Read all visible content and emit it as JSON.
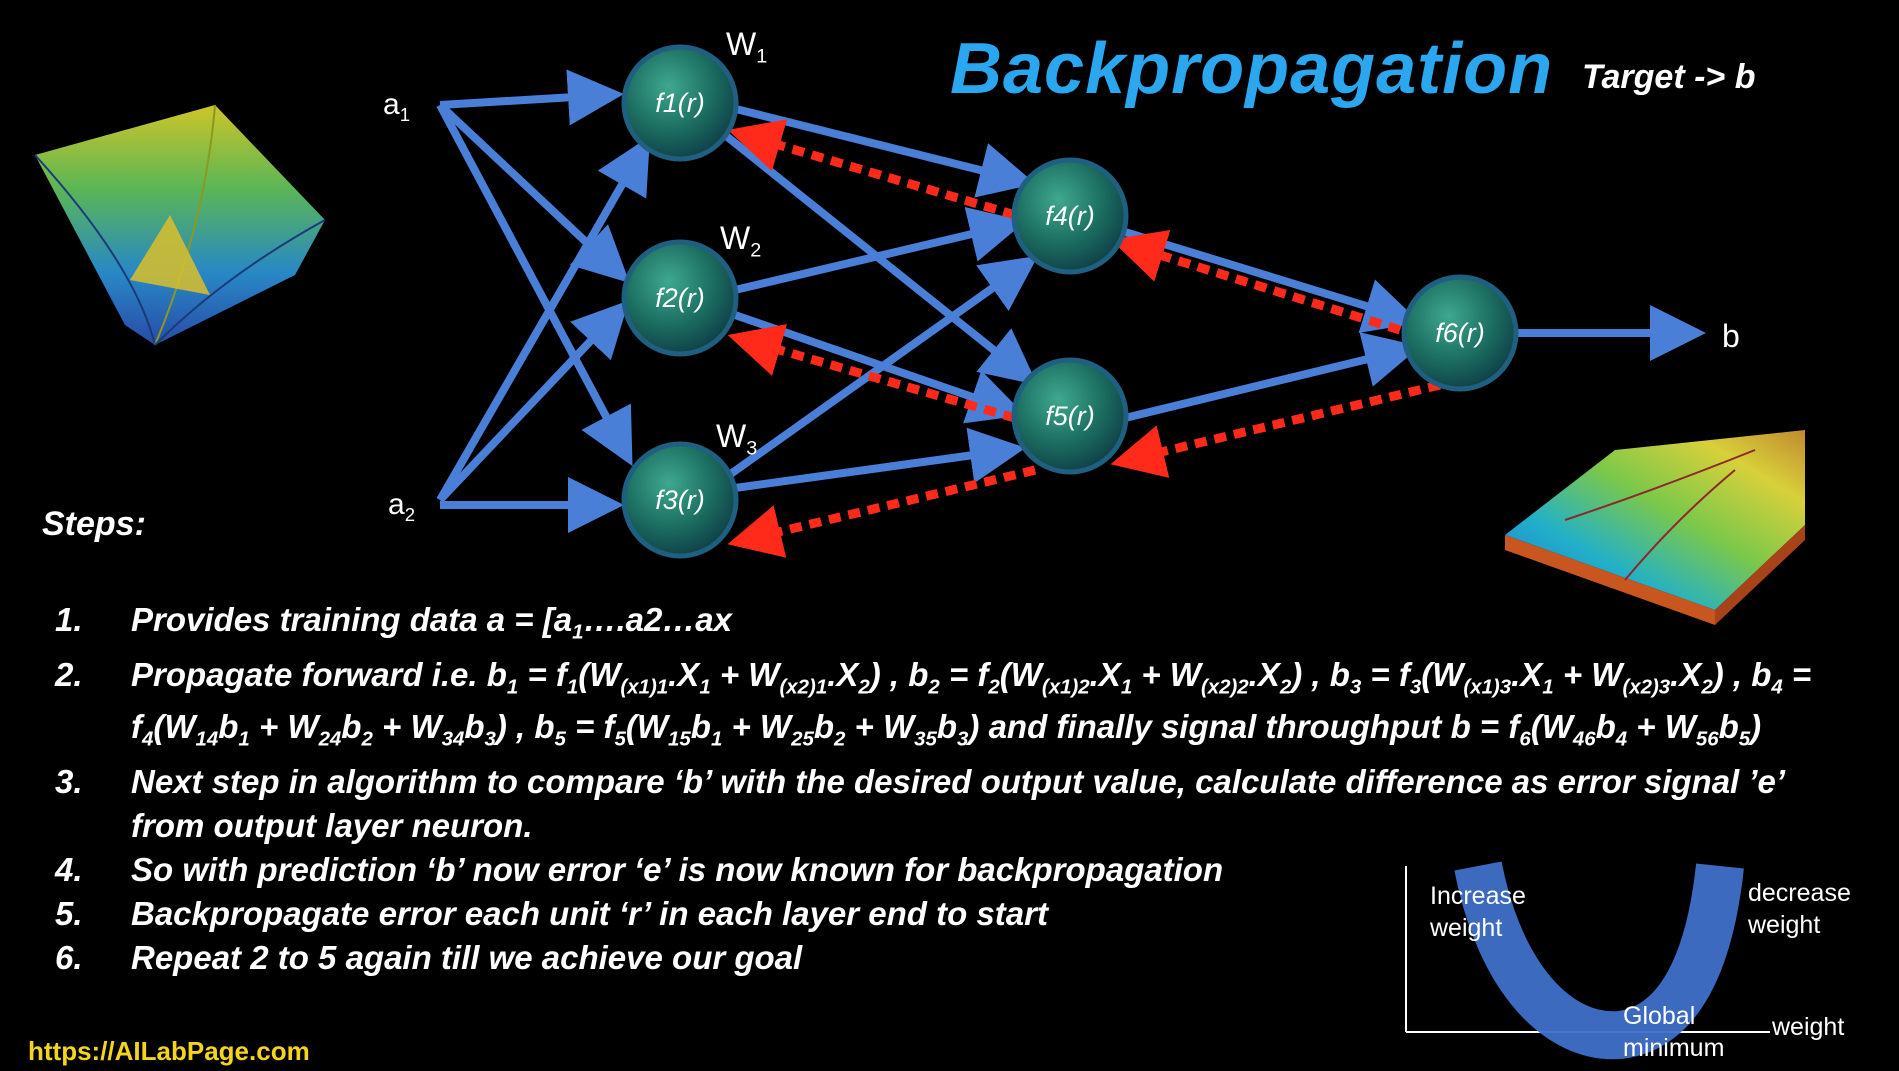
{
  "title": "Backpropagation",
  "target": "Target -> b",
  "steps_title": "Steps:",
  "inputs": [
    {
      "main": "a",
      "sub": "1"
    },
    {
      "main": "a",
      "sub": "2"
    }
  ],
  "weights": [
    {
      "main": "W",
      "sub": "1"
    },
    {
      "main": "W",
      "sub": "2"
    },
    {
      "main": "W",
      "sub": "3"
    }
  ],
  "nodes": [
    "f1(r)",
    "f2(r)",
    "f3(r)",
    "f4(r)",
    "f5(r)",
    "f6(r)"
  ],
  "output": "b",
  "steps": [
    {
      "num": "1.",
      "segments": [
        [
          "Provides training data  a = [a",
          ""
        ],
        [
          "1",
          "sub"
        ],
        [
          "….a2…ax",
          ""
        ]
      ]
    },
    {
      "num": "2.",
      "segments": [
        [
          "Propagate forward i.e. b",
          ""
        ],
        [
          "1",
          "sub"
        ],
        [
          " = f",
          ""
        ],
        [
          "1",
          "sub"
        ],
        [
          "(W",
          ""
        ],
        [
          "(x1)1",
          "sub"
        ],
        [
          ".X",
          ""
        ],
        [
          "1",
          "sub"
        ],
        [
          " + W",
          ""
        ],
        [
          "(x2)1",
          "sub"
        ],
        [
          ".X",
          ""
        ],
        [
          "2",
          "sub"
        ],
        [
          ") ,    b",
          ""
        ],
        [
          "2",
          "sub"
        ],
        [
          " = f",
          ""
        ],
        [
          "2",
          "sub"
        ],
        [
          "(W",
          ""
        ],
        [
          "(x1)2",
          "sub"
        ],
        [
          ".X",
          ""
        ],
        [
          "1",
          "sub"
        ],
        [
          " + W",
          ""
        ],
        [
          "(x2)2",
          "sub"
        ],
        [
          ".X",
          ""
        ],
        [
          "2",
          "sub"
        ],
        [
          ") ,    b",
          ""
        ],
        [
          "3",
          "sub"
        ],
        [
          " = f",
          ""
        ],
        [
          "3",
          "sub"
        ],
        [
          "(W",
          ""
        ],
        [
          "(x1)3",
          "sub"
        ],
        [
          ".X",
          ""
        ],
        [
          "1",
          "sub"
        ],
        [
          " + W",
          ""
        ],
        [
          "(x2)3",
          "sub"
        ],
        [
          ".X",
          ""
        ],
        [
          "2",
          "sub"
        ],
        [
          ")",
          ""
        ],
        [
          " , b",
          ""
        ],
        [
          "4",
          "sub"
        ],
        [
          " = f",
          ""
        ],
        [
          "4",
          "sub"
        ],
        [
          "(W",
          ""
        ],
        [
          "14",
          "sub"
        ],
        [
          "b",
          ""
        ],
        [
          "1",
          "sub"
        ],
        [
          " + W",
          ""
        ],
        [
          "24",
          "sub"
        ],
        [
          "b",
          ""
        ],
        [
          "2",
          "sub"
        ],
        [
          " + W",
          ""
        ],
        [
          "34",
          "sub"
        ],
        [
          "b",
          ""
        ],
        [
          "3",
          "sub"
        ],
        [
          ")  , b",
          ""
        ],
        [
          "5",
          "sub"
        ],
        [
          " = f",
          ""
        ],
        [
          "5",
          "sub"
        ],
        [
          "(W",
          ""
        ],
        [
          "15",
          "sub"
        ],
        [
          "b",
          ""
        ],
        [
          "1",
          "sub"
        ],
        [
          " + W",
          ""
        ],
        [
          "25",
          "sub"
        ],
        [
          "b",
          ""
        ],
        [
          "2",
          "sub"
        ],
        [
          " + W",
          ""
        ],
        [
          "35",
          "sub"
        ],
        [
          "b",
          ""
        ],
        [
          "3",
          "sub"
        ],
        [
          ") and finally signal throughput b = f",
          ""
        ],
        [
          "6",
          "sub"
        ],
        [
          "(W",
          ""
        ],
        [
          "46",
          "sub"
        ],
        [
          "b",
          ""
        ],
        [
          "4",
          "sub"
        ],
        [
          " + W",
          ""
        ],
        [
          "56",
          "sub"
        ],
        [
          "b",
          ""
        ],
        [
          "5",
          "sub"
        ],
        [
          ")",
          ""
        ]
      ]
    },
    {
      "num": "3.",
      "segments": [
        [
          "Next step in algorithm to compare ‘b’ with the desired output value, calculate difference as error signal ’e’ from output layer neuron.",
          ""
        ]
      ]
    },
    {
      "num": "4.",
      "segments": [
        [
          "So with prediction ‘b’ now error ‘e’ is now known for backpropagation",
          ""
        ]
      ]
    },
    {
      "num": "5.",
      "segments": [
        [
          "Backpropagate error  each unit ‘r’ in each layer end to start",
          ""
        ]
      ]
    },
    {
      "num": "6.",
      "segments": [
        [
          "Repeat 2 to 5 again till we achieve our goal",
          ""
        ]
      ]
    }
  ],
  "graph": {
    "increase": [
      "Increase",
      "weight"
    ],
    "decrease": [
      "decrease",
      "weight"
    ],
    "minimum": [
      "Global",
      "minimum"
    ],
    "axis": "weight"
  },
  "url": "https://AILabPage.com",
  "colors": {
    "arrow": "#4a7fd8",
    "error": "#ff2a1a",
    "title": "#2aa7ee",
    "url": "#f4d51c",
    "node": "#1f7f6e"
  }
}
